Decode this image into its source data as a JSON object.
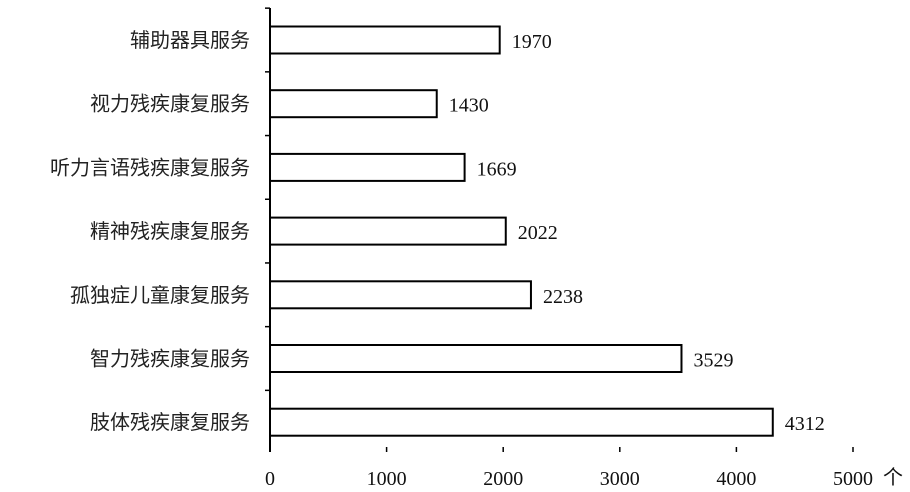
{
  "chart_data": {
    "type": "bar",
    "orientation": "horizontal",
    "categories": [
      "辅助器具服务",
      "视力残疾康复服务",
      "听力言语残疾康复服务",
      "精神残疾康复服务",
      "孤独症儿童康复服务",
      "智力残疾康复服务",
      "肢体残疾康复服务"
    ],
    "values": [
      1970,
      1430,
      1669,
      2022,
      2238,
      3529,
      4312
    ],
    "data_labels": [
      "1970",
      "1430",
      "1669",
      "2022",
      "2238",
      "3529",
      "4312"
    ],
    "xlim": [
      0,
      5000
    ],
    "xticks": [
      "0",
      "1000",
      "2000",
      "3000",
      "4000",
      "5000"
    ],
    "unit": "个",
    "bar_fill": "#ffffff",
    "bar_stroke": "#000000",
    "grid": false
  }
}
